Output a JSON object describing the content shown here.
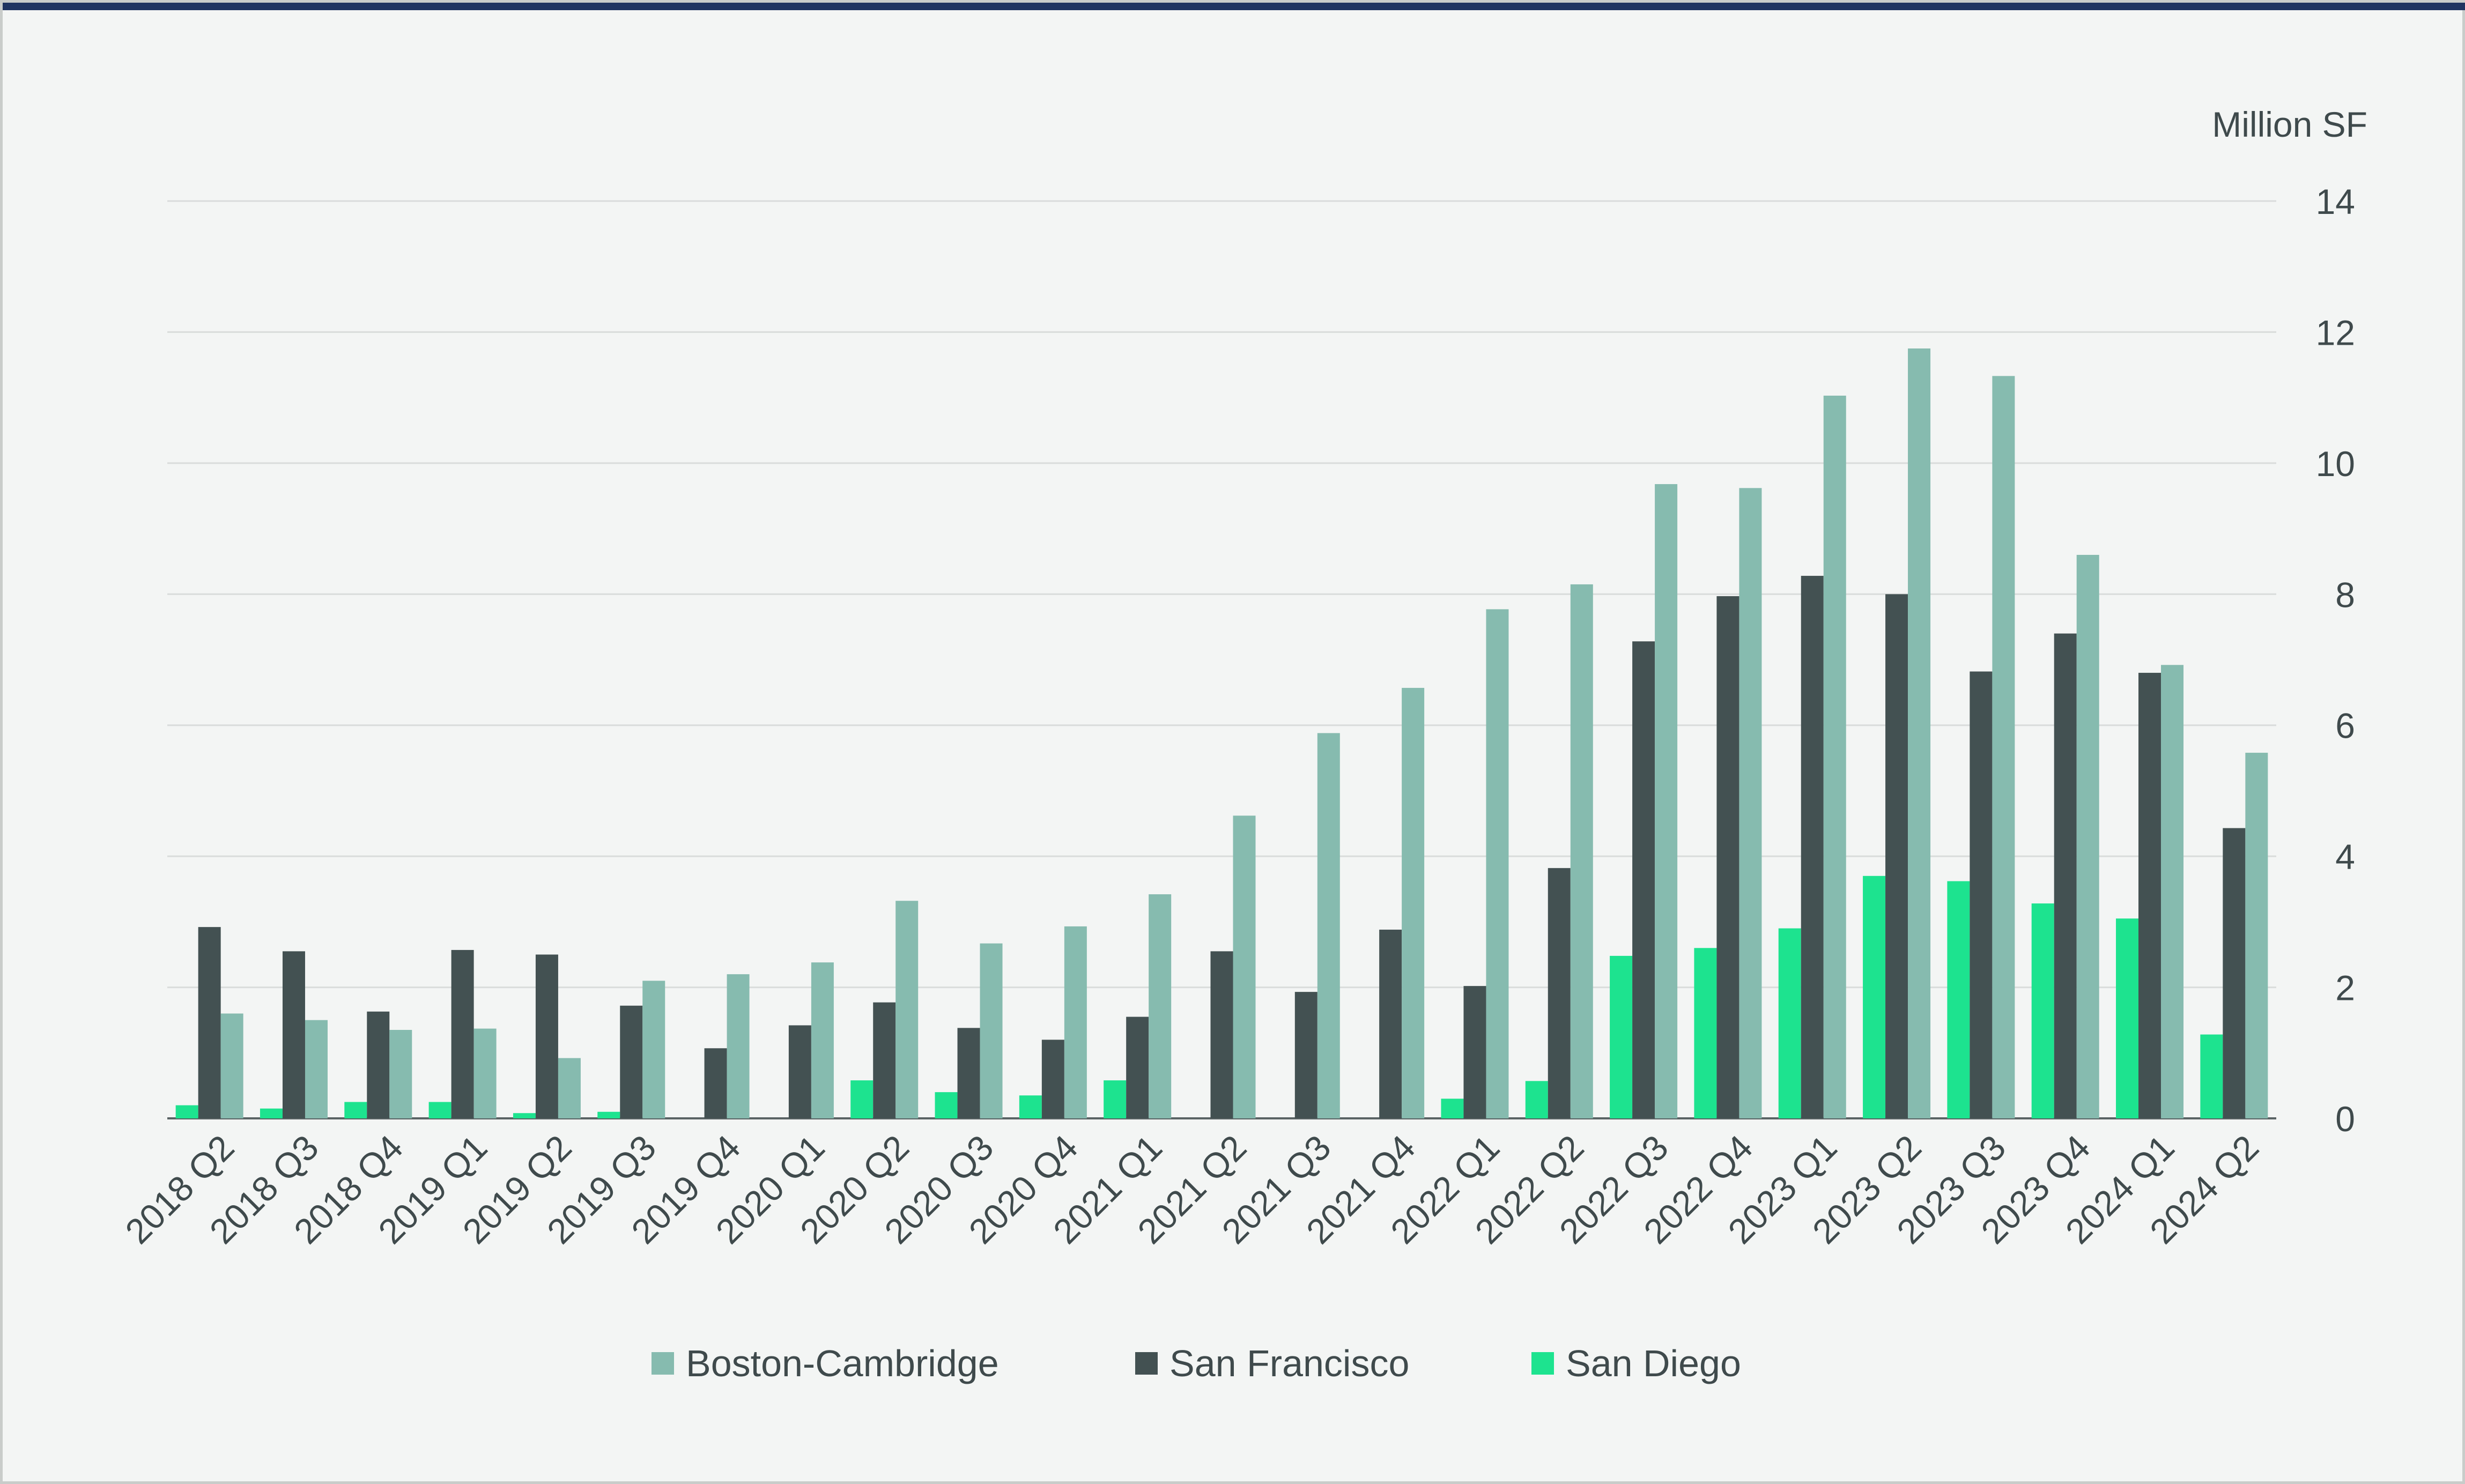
{
  "chart_data": {
    "type": "bar",
    "ylabel": "Million SF",
    "ylim": [
      0,
      14
    ],
    "yticks": [
      0,
      2,
      4,
      6,
      8,
      10,
      12,
      14
    ],
    "grid": true,
    "legend_position": "bottom-center",
    "categories": [
      "2018 Q2",
      "2018 Q3",
      "2018 Q4",
      "2019 Q1",
      "2019 Q2",
      "2019 Q3",
      "2019 Q4",
      "2020 Q1",
      "2020 Q2",
      "2020 Q3",
      "2020 Q4",
      "2021 Q1",
      "2021 Q2",
      "2021 Q3",
      "2021 Q4",
      "2022 Q1",
      "2022 Q2",
      "2022 Q3",
      "2022 Q4",
      "2023 Q1",
      "2023 Q2",
      "2023 Q3",
      "2023 Q4",
      "2024 Q1",
      "2024 Q2"
    ],
    "series": [
      {
        "name": "San Diego",
        "color": "#1de38f",
        "values": [
          0.2,
          0.15,
          0.25,
          0.25,
          0.08,
          0.1,
          0,
          0,
          0.58,
          0.4,
          0.35,
          0.58,
          0,
          0,
          0,
          0.3,
          0.57,
          2.48,
          2.6,
          2.9,
          3.7,
          3.62,
          3.28,
          3.05,
          1.28
        ]
      },
      {
        "name": "San Francisco",
        "color": "#435152",
        "values": [
          2.92,
          2.55,
          1.63,
          2.57,
          2.5,
          1.72,
          1.07,
          1.42,
          1.77,
          1.38,
          1.2,
          1.55,
          2.55,
          1.93,
          2.88,
          2.02,
          3.82,
          7.28,
          7.97,
          8.28,
          8.0,
          6.82,
          7.4,
          6.8,
          4.43
        ]
      },
      {
        "name": "Boston-Cambridge",
        "color": "#86bbaf",
        "values": [
          1.6,
          1.5,
          1.35,
          1.37,
          0.92,
          2.1,
          2.2,
          2.38,
          3.32,
          2.67,
          2.93,
          3.42,
          4.62,
          5.88,
          6.57,
          7.77,
          8.15,
          9.68,
          9.62,
          11.03,
          11.75,
          11.33,
          8.6,
          6.92,
          5.58
        ]
      }
    ],
    "legend": [
      {
        "name": "Boston-Cambridge",
        "color": "#86bbaf"
      },
      {
        "name": "San Francisco",
        "color": "#435152"
      },
      {
        "name": "San Diego",
        "color": "#1de38f"
      }
    ]
  }
}
